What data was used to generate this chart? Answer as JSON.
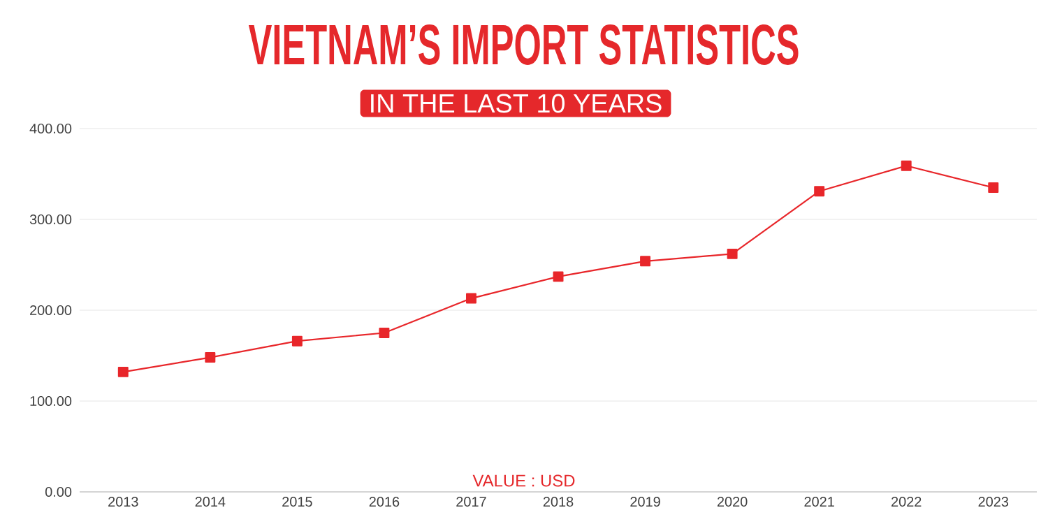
{
  "chart_data": {
    "type": "line",
    "title": "VIETNAM’S IMPORT STATISTICS",
    "subtitle": "IN THE LAST 10 YEARS",
    "categories": [
      "2013",
      "2014",
      "2015",
      "2016",
      "2017",
      "2018",
      "2019",
      "2020",
      "2021",
      "2022",
      "2023"
    ],
    "values": [
      132,
      148,
      166,
      175,
      213,
      237,
      254,
      262,
      331,
      359,
      335
    ],
    "color": "#e8262a",
    "marker": "square",
    "grid": "y",
    "ylim": [
      0,
      400
    ],
    "yticks": [
      {
        "value": 0,
        "label": "0.00"
      },
      {
        "value": 100,
        "label": "100.00"
      },
      {
        "value": 200,
        "label": "200.00"
      },
      {
        "value": 300,
        "label": "300.00"
      },
      {
        "value": 400,
        "label": "400.00"
      }
    ],
    "annotations": [
      "VALUE : USD"
    ]
  }
}
